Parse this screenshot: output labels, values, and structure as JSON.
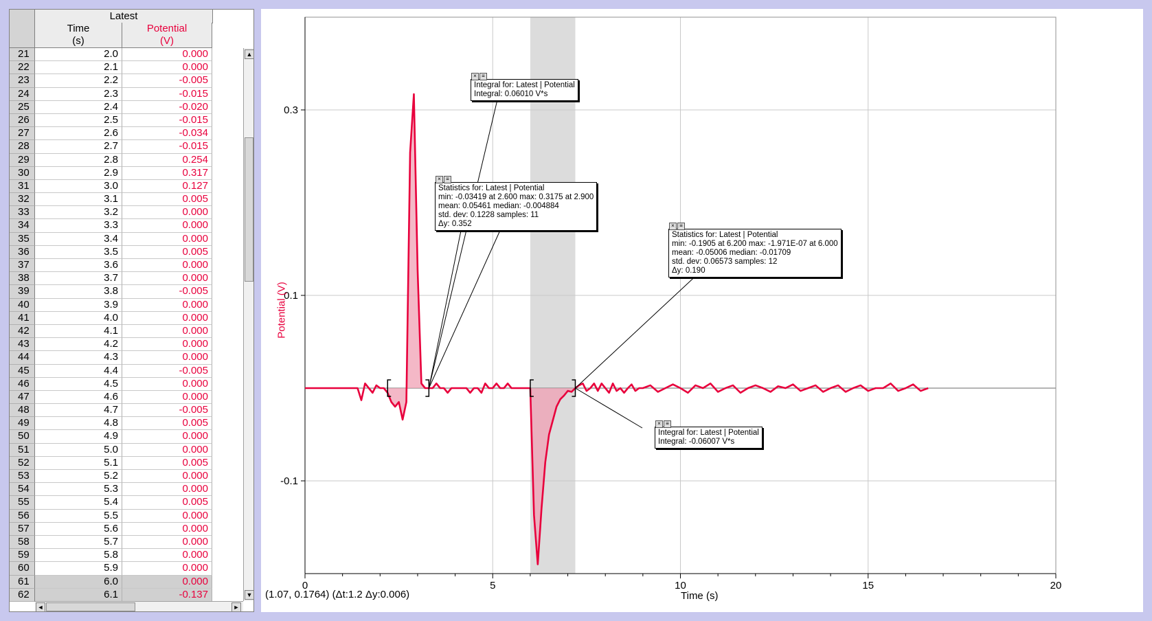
{
  "table": {
    "group_title": "Latest",
    "columns": [
      {
        "name": "Time",
        "unit": "(s)"
      },
      {
        "name": "Potential",
        "unit": "(V)"
      }
    ],
    "rows": [
      {
        "n": "21",
        "t": "2.0",
        "v": "0.000"
      },
      {
        "n": "22",
        "t": "2.1",
        "v": "0.000"
      },
      {
        "n": "23",
        "t": "2.2",
        "v": "-0.005"
      },
      {
        "n": "24",
        "t": "2.3",
        "v": "-0.015"
      },
      {
        "n": "25",
        "t": "2.4",
        "v": "-0.020"
      },
      {
        "n": "26",
        "t": "2.5",
        "v": "-0.015"
      },
      {
        "n": "27",
        "t": "2.6",
        "v": "-0.034"
      },
      {
        "n": "28",
        "t": "2.7",
        "v": "-0.015"
      },
      {
        "n": "29",
        "t": "2.8",
        "v": "0.254"
      },
      {
        "n": "30",
        "t": "2.9",
        "v": "0.317"
      },
      {
        "n": "31",
        "t": "3.0",
        "v": "0.127"
      },
      {
        "n": "32",
        "t": "3.1",
        "v": "0.005"
      },
      {
        "n": "33",
        "t": "3.2",
        "v": "0.000"
      },
      {
        "n": "34",
        "t": "3.3",
        "v": "0.000"
      },
      {
        "n": "35",
        "t": "3.4",
        "v": "0.000"
      },
      {
        "n": "36",
        "t": "3.5",
        "v": "0.005"
      },
      {
        "n": "37",
        "t": "3.6",
        "v": "0.000"
      },
      {
        "n": "38",
        "t": "3.7",
        "v": "0.000"
      },
      {
        "n": "39",
        "t": "3.8",
        "v": "-0.005"
      },
      {
        "n": "40",
        "t": "3.9",
        "v": "0.000"
      },
      {
        "n": "41",
        "t": "4.0",
        "v": "0.000"
      },
      {
        "n": "42",
        "t": "4.1",
        "v": "0.000"
      },
      {
        "n": "43",
        "t": "4.2",
        "v": "0.000"
      },
      {
        "n": "44",
        "t": "4.3",
        "v": "0.000"
      },
      {
        "n": "45",
        "t": "4.4",
        "v": "-0.005"
      },
      {
        "n": "46",
        "t": "4.5",
        "v": "0.000"
      },
      {
        "n": "47",
        "t": "4.6",
        "v": "0.000"
      },
      {
        "n": "48",
        "t": "4.7",
        "v": "-0.005"
      },
      {
        "n": "49",
        "t": "4.8",
        "v": "0.005"
      },
      {
        "n": "50",
        "t": "4.9",
        "v": "0.000"
      },
      {
        "n": "51",
        "t": "5.0",
        "v": "0.000"
      },
      {
        "n": "52",
        "t": "5.1",
        "v": "0.005"
      },
      {
        "n": "53",
        "t": "5.2",
        "v": "0.000"
      },
      {
        "n": "54",
        "t": "5.3",
        "v": "0.000"
      },
      {
        "n": "55",
        "t": "5.4",
        "v": "0.005"
      },
      {
        "n": "56",
        "t": "5.5",
        "v": "0.000"
      },
      {
        "n": "57",
        "t": "5.6",
        "v": "0.000"
      },
      {
        "n": "58",
        "t": "5.7",
        "v": "0.000"
      },
      {
        "n": "59",
        "t": "5.8",
        "v": "0.000"
      },
      {
        "n": "60",
        "t": "5.9",
        "v": "0.000"
      },
      {
        "n": "61",
        "t": "6.0",
        "v": "0.000",
        "selected": true
      },
      {
        "n": "62",
        "t": "6.1",
        "v": "-0.137",
        "selected": true
      }
    ]
  },
  "graph": {
    "status_text": "(1.07, 0.1764) (Δt:1.2 Δy:0.006)",
    "xlabel": "Time (s)",
    "ylabel": "Potential (V)",
    "x_ticks": [
      "0",
      "5",
      "10",
      "15",
      "20"
    ],
    "y_ticks": [
      "0.3",
      "0.1",
      "-0.1"
    ],
    "annotations": {
      "integral1": {
        "title": "Integral for: Latest | Potential",
        "lines": [
          "Integral: 0.06010 V*s"
        ]
      },
      "stats1": {
        "title": "Statistics for: Latest | Potential",
        "lines": [
          "min: -0.03419 at 2.600 max: 0.3175 at 2.900",
          "mean: 0.05461 median: -0.004884",
          "std. dev: 0.1228 samples: 11",
          "Δy: 0.352"
        ]
      },
      "stats2": {
        "title": "Statistics for: Latest | Potential",
        "lines": [
          "min: -0.1905 at 6.200 max: -1.971E-07 at 6.000",
          "mean: -0.05006 median: -0.01709",
          "std. dev: 0.06573 samples: 12",
          "Δy: 0.190"
        ]
      },
      "integral2": {
        "title": "Integral for: Latest | Potential",
        "lines": [
          "Integral: -0.06007 V*s"
        ]
      }
    }
  },
  "chart_data": {
    "type": "line",
    "xlabel": "Time (s)",
    "ylabel": "Potential (V)",
    "xlim": [
      0,
      20
    ],
    "ylim": [
      -0.2,
      0.4
    ],
    "grid": true,
    "x_ticks": [
      0,
      5,
      10,
      15,
      20
    ],
    "y_ticks": [
      0.3,
      0.1,
      -0.1
    ],
    "line_color": "#e8003c",
    "highlight_range": [
      6.0,
      7.2
    ],
    "selection_ranges": [
      [
        2.2,
        3.3
      ],
      [
        6.0,
        7.2
      ]
    ],
    "series": [
      {
        "x": [
          0,
          1.4,
          1.5,
          1.6,
          1.7,
          1.8,
          1.9,
          2.0,
          2.1,
          2.2,
          2.3,
          2.4,
          2.5,
          2.6,
          2.7,
          2.8,
          2.9,
          3.0,
          3.1,
          3.2,
          3.3,
          3.4,
          3.5,
          3.6,
          3.7,
          3.8,
          3.9,
          4.0,
          4.1,
          4.2,
          4.3,
          4.4,
          4.5,
          4.6,
          4.7,
          4.8,
          4.9,
          5.0,
          5.1,
          5.2,
          5.3,
          5.4,
          5.5,
          5.6,
          5.7,
          5.8,
          5.9,
          6.0,
          6.1,
          6.2,
          6.3,
          6.4,
          6.5,
          6.6,
          6.7,
          6.8,
          6.9,
          7.0,
          7.1,
          7.2,
          7.3,
          7.4,
          7.5,
          7.6,
          7.7,
          7.8,
          7.9,
          8.0,
          8.1,
          8.2,
          8.3,
          8.4,
          8.5,
          8.6,
          8.7,
          8.8,
          8.9,
          9.0,
          9.2,
          9.4,
          9.6,
          9.8,
          10.0,
          10.2,
          10.4,
          10.6,
          10.8,
          11.0,
          11.2,
          11.4,
          11.6,
          11.8,
          12.0,
          12.2,
          12.4,
          12.6,
          12.8,
          13.0,
          13.2,
          13.4,
          13.6,
          13.8,
          14.0,
          14.2,
          14.4,
          14.6,
          14.8,
          15.0,
          15.2,
          15.4,
          15.6,
          15.8,
          16.0,
          16.2,
          16.4,
          16.6
        ],
        "y": [
          0,
          0,
          -0.013,
          0.005,
          0,
          -0.005,
          0.003,
          0,
          0,
          -0.005,
          -0.015,
          -0.02,
          -0.015,
          -0.034,
          -0.015,
          0.254,
          0.317,
          0.127,
          0.005,
          0,
          0,
          0,
          0.005,
          0,
          0,
          -0.005,
          0,
          0,
          0,
          0,
          0,
          -0.005,
          0,
          0,
          -0.005,
          0.005,
          0,
          0,
          0.005,
          0,
          0,
          0.005,
          0,
          0,
          0,
          0,
          0,
          0,
          -0.137,
          -0.19,
          -0.13,
          -0.08,
          -0.05,
          -0.035,
          -0.02,
          -0.012,
          -0.008,
          -0.003,
          -0.004,
          0,
          0.003,
          0.005,
          -0.003,
          0,
          0.005,
          -0.003,
          0.005,
          0,
          -0.005,
          0.005,
          -0.003,
          0,
          -0.005,
          0,
          0.004,
          -0.003,
          0,
          0,
          0.003,
          -0.004,
          0,
          0.004,
          0,
          -0.005,
          0.003,
          0,
          0.005,
          -0.004,
          0,
          0.003,
          -0.005,
          0,
          0.003,
          0,
          -0.004,
          0.002,
          0,
          0.004,
          -0.003,
          0,
          0.003,
          -0.004,
          0,
          0.003,
          -0.004,
          0,
          0.003,
          -0.003,
          0,
          0,
          0.005,
          -0.003,
          0,
          0.004,
          -0.003,
          0
        ]
      }
    ]
  }
}
